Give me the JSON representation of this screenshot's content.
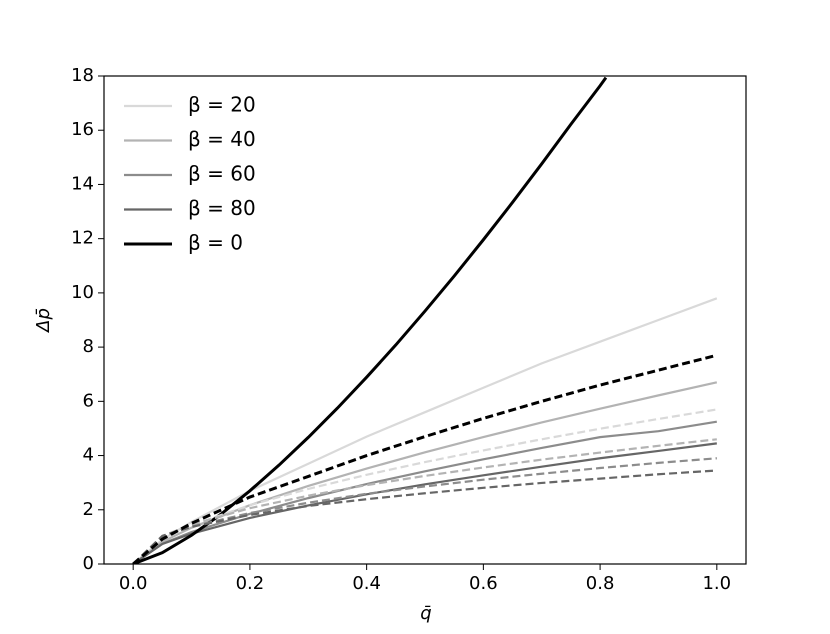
{
  "chart_data": {
    "type": "line",
    "x_label": "q̄",
    "y_label": "Δp̄",
    "xlim": [
      -0.05,
      1.05
    ],
    "xticks": [
      {
        "value": 0,
        "label": "0.0"
      },
      0.2,
      0.4,
      0.6,
      0.8,
      {
        "value": 1,
        "label": "1.0"
      }
    ],
    "ylim": [
      0,
      18
    ],
    "yticks": [
      0,
      2,
      4,
      6,
      8,
      10,
      12,
      14,
      16,
      18
    ],
    "grid": false,
    "legend": "upper left",
    "series": [
      {
        "name": "β = 20",
        "color": "#d9d9d9",
        "dashed": false,
        "x": [
          0,
          0.05,
          0.1,
          0.2,
          0.3,
          0.4,
          0.5,
          0.6,
          0.7,
          0.8,
          0.9,
          1.0
        ],
        "values": [
          0,
          0.9,
          1.55,
          2.7,
          3.7,
          4.7,
          5.6,
          6.5,
          7.4,
          8.2,
          9.0,
          9.8
        ]
      },
      {
        "name": "β = 40",
        "color": "#b3b3b3",
        "dashed": false,
        "x": [
          0,
          0.05,
          0.1,
          0.2,
          0.3,
          0.4,
          0.5,
          0.6,
          0.7,
          0.8,
          0.9,
          1.0
        ],
        "values": [
          0,
          0.82,
          1.34,
          2.17,
          2.88,
          3.52,
          4.12,
          4.68,
          5.22,
          5.73,
          6.22,
          6.7
        ]
      },
      {
        "name": "β = 60",
        "color": "#8c8c8c",
        "dashed": false,
        "x": [
          0,
          0.05,
          0.1,
          0.2,
          0.3,
          0.4,
          0.5,
          0.6,
          0.7,
          0.8,
          0.9,
          1.0
        ],
        "values": [
          0,
          0.75,
          1.18,
          1.85,
          2.43,
          2.95,
          3.42,
          3.86,
          4.28,
          4.68,
          4.9,
          5.25
        ]
      },
      {
        "name": "β = 80",
        "color": "#666666",
        "dashed": false,
        "x": [
          0,
          0.05,
          0.1,
          0.2,
          0.3,
          0.4,
          0.5,
          0.6,
          0.7,
          0.8,
          0.9,
          1.0
        ],
        "values": [
          0,
          0.74,
          1.12,
          1.7,
          2.16,
          2.57,
          2.94,
          3.27,
          3.59,
          3.9,
          4.17,
          4.45
        ]
      },
      {
        "name": "β = 0",
        "color": "#000000",
        "dashed": false,
        "x": [
          0,
          0.05,
          0.1,
          0.15,
          0.2,
          0.25,
          0.3,
          0.35,
          0.4,
          0.45,
          0.5,
          0.55,
          0.6,
          0.65,
          0.7,
          0.75,
          0.8,
          0.81
        ],
        "values": [
          0,
          0.42,
          1.06,
          1.83,
          2.7,
          3.65,
          4.67,
          5.75,
          6.89,
          8.08,
          9.33,
          10.62,
          11.96,
          13.34,
          14.76,
          16.22,
          17.64,
          17.94
        ]
      },
      {
        "color": "#d9d9d9",
        "dashed": true,
        "x": [
          0,
          0.05,
          0.1,
          0.2,
          0.3,
          0.4,
          0.5,
          0.6,
          0.7,
          0.8,
          0.9,
          1.0
        ],
        "values": [
          0,
          0.95,
          1.43,
          2.17,
          2.77,
          3.29,
          3.76,
          4.19,
          4.6,
          4.99,
          5.35,
          5.7
        ]
      },
      {
        "color": "#b3b3b3",
        "dashed": true,
        "x": [
          0,
          0.05,
          0.1,
          0.2,
          0.3,
          0.4,
          0.5,
          0.6,
          0.7,
          0.8,
          0.9,
          1.0
        ],
        "values": [
          0,
          1.03,
          1.45,
          2.06,
          2.52,
          2.91,
          3.25,
          3.56,
          3.85,
          4.11,
          4.36,
          4.6
        ]
      },
      {
        "color": "#8c8c8c",
        "dashed": true,
        "x": [
          0,
          0.05,
          0.1,
          0.2,
          0.3,
          0.4,
          0.5,
          0.6,
          0.7,
          0.8,
          0.9,
          1.0
        ],
        "values": [
          0,
          1.02,
          1.38,
          1.88,
          2.26,
          2.59,
          2.86,
          3.11,
          3.33,
          3.54,
          3.73,
          3.9
        ]
      },
      {
        "color": "#666666",
        "dashed": true,
        "x": [
          0,
          0.05,
          0.1,
          0.2,
          0.3,
          0.4,
          0.5,
          0.6,
          0.7,
          0.8,
          0.9,
          1.0
        ],
        "values": [
          0,
          1.04,
          1.37,
          1.81,
          2.14,
          2.39,
          2.61,
          2.81,
          2.99,
          3.15,
          3.31,
          3.45
        ]
      },
      {
        "color": "#000000",
        "dashed": true,
        "x": [
          0,
          0.05,
          0.1,
          0.2,
          0.3,
          0.4,
          0.5,
          0.6,
          0.7,
          0.8,
          0.9,
          1.0
        ],
        "values": [
          0,
          0.92,
          1.5,
          2.47,
          3.23,
          4.0,
          4.7,
          5.37,
          6.0,
          6.6,
          7.15,
          7.7
        ]
      }
    ]
  }
}
